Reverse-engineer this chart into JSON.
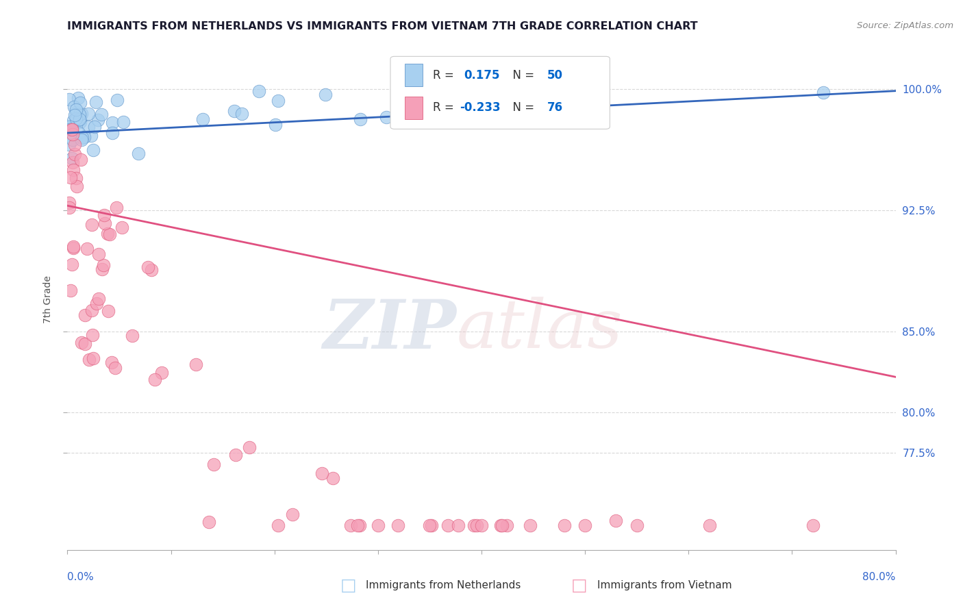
{
  "title": "IMMIGRANTS FROM NETHERLANDS VS IMMIGRANTS FROM VIETNAM 7TH GRADE CORRELATION CHART",
  "source": "Source: ZipAtlas.com",
  "ylabel": "7th Grade",
  "xmin": 0.0,
  "xmax": 0.8,
  "ymin": 0.715,
  "ymax": 1.025,
  "ytick_values": [
    0.775,
    0.8,
    0.85,
    0.925,
    1.0
  ],
  "ytick_labels": [
    "77.5%",
    "80.0%",
    "85.0%",
    "92.5%",
    "100.0%"
  ],
  "R_netherlands": 0.175,
  "N_netherlands": 50,
  "R_vietnam": -0.233,
  "N_vietnam": 76,
  "color_netherlands": "#a8d0f0",
  "color_vietnam": "#f5a0b8",
  "edge_netherlands": "#6699cc",
  "edge_vietnam": "#e06080",
  "trendline_color_netherlands": "#3366bb",
  "trendline_color_vietnam": "#e05080",
  "grid_color": "#c8c8c8",
  "title_color": "#1a1a2e",
  "legend_R_color": "#0066cc",
  "legend_N_color": "#0066cc",
  "source_color": "#888888",
  "axis_label_color": "#555555",
  "right_axis_color": "#3366cc",
  "neth_trendline_y0": 0.973,
  "neth_trendline_y1": 0.999,
  "viet_trendline_y0": 0.928,
  "viet_trendline_y1": 0.822
}
